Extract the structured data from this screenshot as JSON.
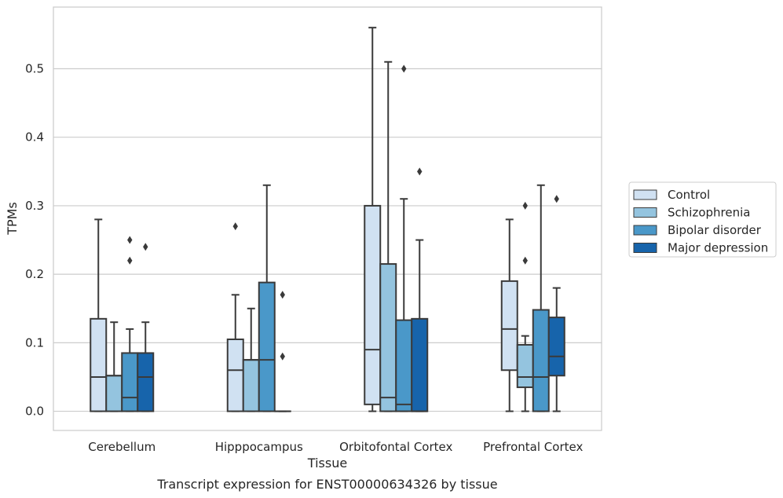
{
  "chart_data": {
    "type": "box",
    "xlabel": "Tissue",
    "ylabel": "TPMs",
    "caption": "Transcript expression for ENST00000634326 by tissue",
    "ylim": [
      -0.028,
      0.59
    ],
    "yticks": [
      0.0,
      0.1,
      0.2,
      0.3,
      0.4,
      0.5
    ],
    "ytick_labels": [
      "0.0",
      "0.1",
      "0.2",
      "0.3",
      "0.4",
      "0.5"
    ],
    "grid": true,
    "legend_position": "right",
    "categories": [
      "Cerebellum",
      "Hipppocampus",
      "Orbitofontal Cortex",
      "Prefrontal Cortex"
    ],
    "series": [
      {
        "name": "Control",
        "color": "#d0e1f2",
        "boxes": [
          {
            "whislo": 0.0,
            "q1": 0.0,
            "med": 0.05,
            "q3": 0.135,
            "whishi": 0.28,
            "fliers": []
          },
          {
            "whislo": 0.0,
            "q1": 0.0,
            "med": 0.06,
            "q3": 0.105,
            "whishi": 0.17,
            "fliers": [
              0.27
            ]
          },
          {
            "whislo": 0.0,
            "q1": 0.01,
            "med": 0.09,
            "q3": 0.3,
            "whishi": 0.56,
            "fliers": []
          },
          {
            "whislo": 0.0,
            "q1": 0.06,
            "med": 0.12,
            "q3": 0.19,
            "whishi": 0.28,
            "fliers": []
          }
        ]
      },
      {
        "name": "Schizophrenia",
        "color": "#94c4df",
        "boxes": [
          {
            "whislo": 0.0,
            "q1": 0.0,
            "med": 0.052,
            "q3": 0.052,
            "whishi": 0.13,
            "fliers": []
          },
          {
            "whislo": 0.0,
            "q1": 0.0,
            "med": 0.075,
            "q3": 0.075,
            "whishi": 0.15,
            "fliers": []
          },
          {
            "whislo": 0.0,
            "q1": 0.0,
            "med": 0.02,
            "q3": 0.215,
            "whishi": 0.51,
            "fliers": []
          },
          {
            "whislo": 0.0,
            "q1": 0.035,
            "med": 0.05,
            "q3": 0.097,
            "whishi": 0.11,
            "fliers": [
              0.22,
              0.3
            ]
          }
        ]
      },
      {
        "name": "Bipolar disorder",
        "color": "#4a98c9",
        "boxes": [
          {
            "whislo": 0.0,
            "q1": 0.0,
            "med": 0.02,
            "q3": 0.085,
            "whishi": 0.12,
            "fliers": [
              0.22,
              0.25
            ]
          },
          {
            "whislo": 0.0,
            "q1": 0.0,
            "med": 0.075,
            "q3": 0.188,
            "whishi": 0.33,
            "fliers": []
          },
          {
            "whislo": 0.0,
            "q1": 0.0,
            "med": 0.01,
            "q3": 0.133,
            "whishi": 0.31,
            "fliers": [
              0.5
            ]
          },
          {
            "whislo": 0.0,
            "q1": 0.0,
            "med": 0.05,
            "q3": 0.148,
            "whishi": 0.33,
            "fliers": []
          }
        ]
      },
      {
        "name": "Major depression",
        "color": "#1764ab",
        "boxes": [
          {
            "whislo": 0.0,
            "q1": 0.0,
            "med": 0.05,
            "q3": 0.085,
            "whishi": 0.13,
            "fliers": [
              0.24
            ]
          },
          {
            "whislo": 0.0,
            "q1": 0.0,
            "med": 0.0,
            "q3": 0.0,
            "whishi": 0.0,
            "fliers": [
              0.08,
              0.17
            ]
          },
          {
            "whislo": 0.0,
            "q1": 0.0,
            "med": 0.0,
            "q3": 0.135,
            "whishi": 0.25,
            "fliers": [
              0.35
            ]
          },
          {
            "whislo": 0.0,
            "q1": 0.052,
            "med": 0.08,
            "q3": 0.137,
            "whishi": 0.18,
            "fliers": [
              0.31
            ]
          }
        ]
      }
    ]
  }
}
